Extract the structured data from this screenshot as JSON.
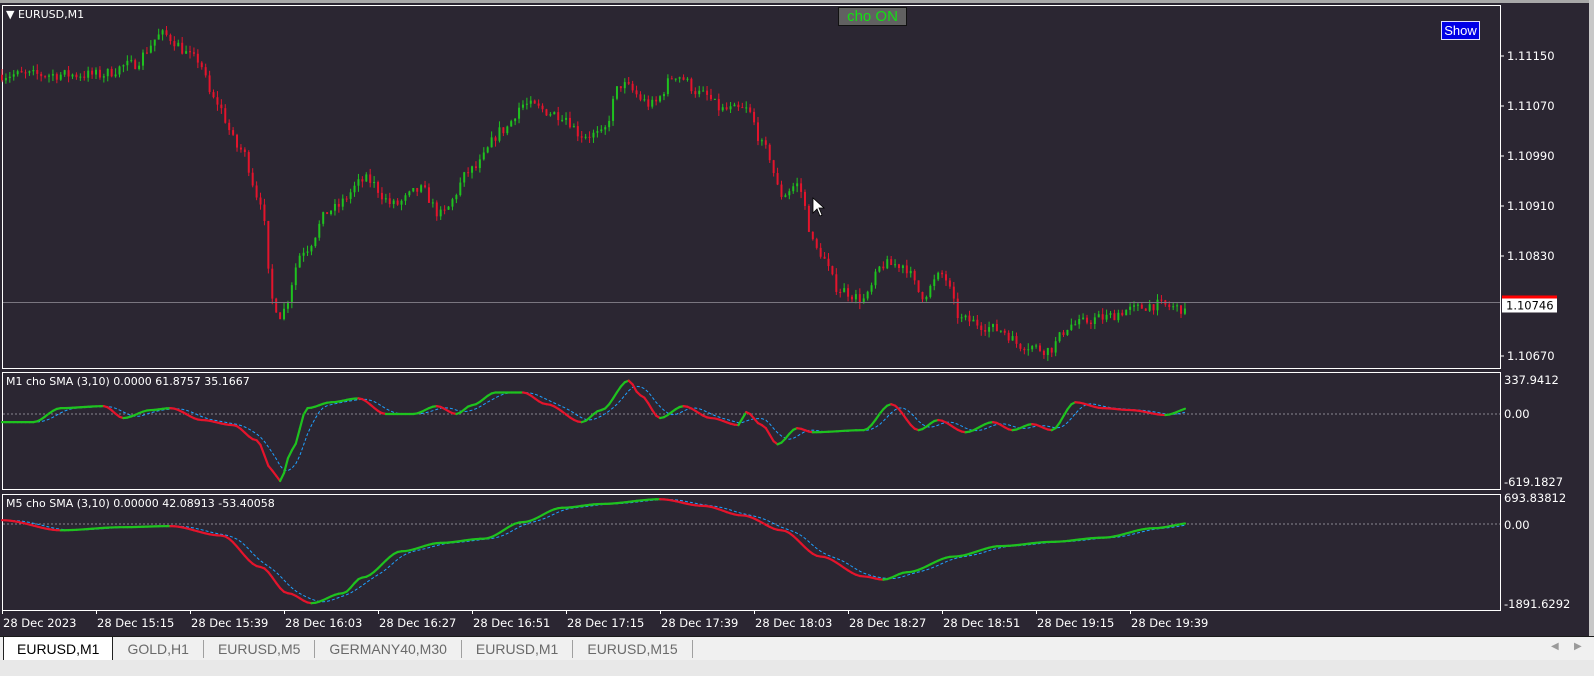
{
  "chart_title": "EURUSD,M1",
  "buttons": {
    "cho_on": "cho ON",
    "show": "Show"
  },
  "colors": {
    "background": "#2b2632",
    "bull": "#1fc21f",
    "bear": "#e4142c",
    "signal": "#1ea0ff",
    "bid_marker": "#ff0000",
    "show_button": "#0000e6",
    "cho_on_text": "#14e014"
  },
  "price_axis": {
    "ticks": [
      "1.11150",
      "1.11070",
      "1.10990",
      "1.10910",
      "1.10830",
      "1.10670"
    ],
    "current_price": "1.10746"
  },
  "time_axis": [
    "28 Dec 2023",
    "28 Dec 15:15",
    "28 Dec 15:39",
    "28 Dec 16:03",
    "28 Dec 16:27",
    "28 Dec 16:51",
    "28 Dec 17:15",
    "28 Dec 17:39",
    "28 Dec 18:03",
    "28 Dec 18:27",
    "28 Dec 18:51",
    "28 Dec 19:15",
    "28 Dec 19:39"
  ],
  "indicators": [
    {
      "label": "M1 cho  SMA (3,10) 0.0000 61.8757 35.1667",
      "max": "337.9412",
      "zero": "0.00",
      "min": "-619.1827"
    },
    {
      "label": "M5 cho  SMA (3,10) 0.00000 42.08913 -53.40058",
      "max": "693.83812",
      "zero": "0.00",
      "min": "-1891.6292"
    }
  ],
  "tabs": [
    {
      "label": "EURUSD,M1",
      "active": true
    },
    {
      "label": "GOLD,H1",
      "active": false
    },
    {
      "label": "EURUSD,M5",
      "active": false
    },
    {
      "label": "GERMANY40,M30",
      "active": false
    },
    {
      "label": "EURUSD,M1",
      "active": false
    },
    {
      "label": "EURUSD,M15",
      "active": false
    }
  ],
  "chart_data": {
    "type": "candlestick",
    "symbol": "EURUSD",
    "timeframe": "M1",
    "date": "28 Dec 2023",
    "price_range": [
      1.1062,
      1.1121
    ],
    "price_path": [
      [
        "14:51",
        1.1112
      ],
      [
        "15:16",
        1.1112
      ],
      [
        "15:24",
        1.11136
      ],
      [
        "15:32",
        1.11184
      ],
      [
        "15:41",
        1.11144
      ],
      [
        "15:45",
        1.1108
      ],
      [
        "15:52",
        1.11
      ],
      [
        "15:57",
        1.1092
      ],
      [
        "16:00",
        1.1076
      ],
      [
        "16:02",
        1.10736
      ],
      [
        "16:08",
        1.1084
      ],
      [
        "16:15",
        1.10904
      ],
      [
        "16:24",
        1.10952
      ],
      [
        "16:31",
        1.10912
      ],
      [
        "16:38",
        1.10936
      ],
      [
        "16:43",
        1.10896
      ],
      [
        "16:51",
        1.10968
      ],
      [
        "16:59",
        1.11032
      ],
      [
        "17:04",
        1.11072
      ],
      [
        "17:14",
        1.11056
      ],
      [
        "17:19",
        1.11024
      ],
      [
        "17:24",
        1.11024
      ],
      [
        "17:29",
        1.11104
      ],
      [
        "17:37",
        1.11072
      ],
      [
        "17:43",
        1.1112
      ],
      [
        "17:50",
        1.11088
      ],
      [
        "17:55",
        1.11064
      ],
      [
        "18:01",
        1.11064
      ],
      [
        "18:06",
        1.11
      ],
      [
        "18:10",
        1.10928
      ],
      [
        "18:14",
        1.10944
      ],
      [
        "18:19",
        1.1084
      ],
      [
        "18:25",
        1.10776
      ],
      [
        "18:31",
        1.1076
      ],
      [
        "18:36",
        1.10816
      ],
      [
        "18:41",
        1.10816
      ],
      [
        "18:46",
        1.10768
      ],
      [
        "18:51",
        1.108
      ],
      [
        "18:56",
        1.10728
      ],
      [
        "19:06",
        1.10712
      ],
      [
        "19:11",
        1.10688
      ],
      [
        "19:18",
        1.1068
      ],
      [
        "19:24",
        1.1072
      ],
      [
        "19:32",
        1.10731
      ],
      [
        "19:39",
        1.10744
      ],
      [
        "19:45",
        1.10752
      ],
      [
        "19:53",
        1.10746
      ]
    ],
    "m1_cho": [
      [
        "14:51",
        -74
      ],
      [
        "14:59",
        -74
      ],
      [
        "15:06",
        55
      ],
      [
        "15:17",
        74
      ],
      [
        "15:22",
        -37
      ],
      [
        "15:29",
        37
      ],
      [
        "15:34",
        55
      ],
      [
        "15:42",
        -55
      ],
      [
        "15:50",
        -101
      ],
      [
        "15:56",
        -239
      ],
      [
        "16:00",
        -515
      ],
      [
        "16:02",
        -610
      ],
      [
        "16:05",
        -331
      ],
      [
        "16:09",
        55
      ],
      [
        "16:15",
        110
      ],
      [
        "16:22",
        147
      ],
      [
        "16:29",
        0
      ],
      [
        "16:36",
        0
      ],
      [
        "16:42",
        74
      ],
      [
        "16:47",
        0
      ],
      [
        "16:51",
        83
      ],
      [
        "16:57",
        202
      ],
      [
        "17:04",
        202
      ],
      [
        "17:10",
        92
      ],
      [
        "17:19",
        -74
      ],
      [
        "17:24",
        37
      ],
      [
        "17:31",
        313
      ],
      [
        "17:34",
        175
      ],
      [
        "17:39",
        -37
      ],
      [
        "17:45",
        74
      ],
      [
        "17:52",
        -37
      ],
      [
        "17:59",
        -101
      ],
      [
        "18:01",
        18
      ],
      [
        "18:05",
        -101
      ],
      [
        "18:09",
        -276
      ],
      [
        "18:14",
        -129
      ],
      [
        "18:18",
        -166
      ],
      [
        "18:31",
        -147
      ],
      [
        "18:38",
        92
      ],
      [
        "18:45",
        -147
      ],
      [
        "18:50",
        -55
      ],
      [
        "18:57",
        -166
      ],
      [
        "19:04",
        -74
      ],
      [
        "19:09",
        -147
      ],
      [
        "19:14",
        -92
      ],
      [
        "19:19",
        -147
      ],
      [
        "19:25",
        110
      ],
      [
        "19:32",
        55
      ],
      [
        "19:39",
        37
      ],
      [
        "19:48",
        -9
      ],
      [
        "19:55",
        64
      ]
    ],
    "m5_cho": [
      [
        "14:51",
        98
      ],
      [
        "15:06",
        -147
      ],
      [
        "15:22",
        -74
      ],
      [
        "15:34",
        -49
      ],
      [
        "15:47",
        -270
      ],
      [
        "15:57",
        -1004
      ],
      [
        "16:04",
        -1617
      ],
      [
        "16:10",
        -1850
      ],
      [
        "16:18",
        -1617
      ],
      [
        "16:23",
        -1250
      ],
      [
        "16:33",
        -637
      ],
      [
        "16:43",
        -441
      ],
      [
        "16:54",
        -343
      ],
      [
        "17:04",
        49
      ],
      [
        "17:14",
        417
      ],
      [
        "17:24",
        515
      ],
      [
        "17:39",
        637
      ],
      [
        "17:50",
        466
      ],
      [
        "18:00",
        220
      ],
      [
        "18:10",
        -147
      ],
      [
        "18:20",
        -760
      ],
      [
        "18:31",
        -1225
      ],
      [
        "18:36",
        -1299
      ],
      [
        "18:42",
        -1127
      ],
      [
        "18:54",
        -760
      ],
      [
        "19:06",
        -515
      ],
      [
        "19:19",
        -417
      ],
      [
        "19:32",
        -319
      ],
      [
        "19:45",
        -98
      ],
      [
        "19:55",
        25
      ]
    ],
    "m1_range": [
      -619.1827,
      337.9412
    ],
    "m5_range": [
      -1891.6292,
      693.83812
    ]
  }
}
